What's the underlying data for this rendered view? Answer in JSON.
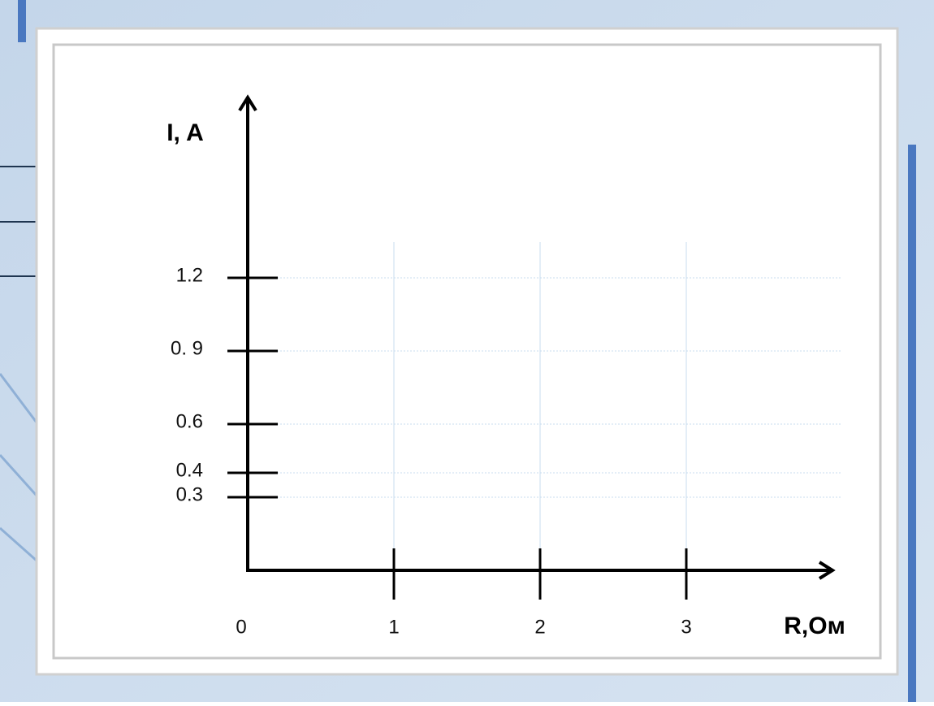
{
  "chart_data": {
    "type": "line",
    "x_label": "R,Ом",
    "y_label": "I, A",
    "xlim": [
      0,
      4
    ],
    "ylim": [
      0,
      1.94
    ],
    "xticks": [
      0,
      1,
      2,
      3
    ],
    "yticks": [
      0.3,
      0.4,
      0.6,
      {
        "value": 0.9,
        "label": "0. 9"
      },
      1.2
    ],
    "grid": true,
    "grid_color": "#c9dcef",
    "axis_color": "#000000"
  }
}
